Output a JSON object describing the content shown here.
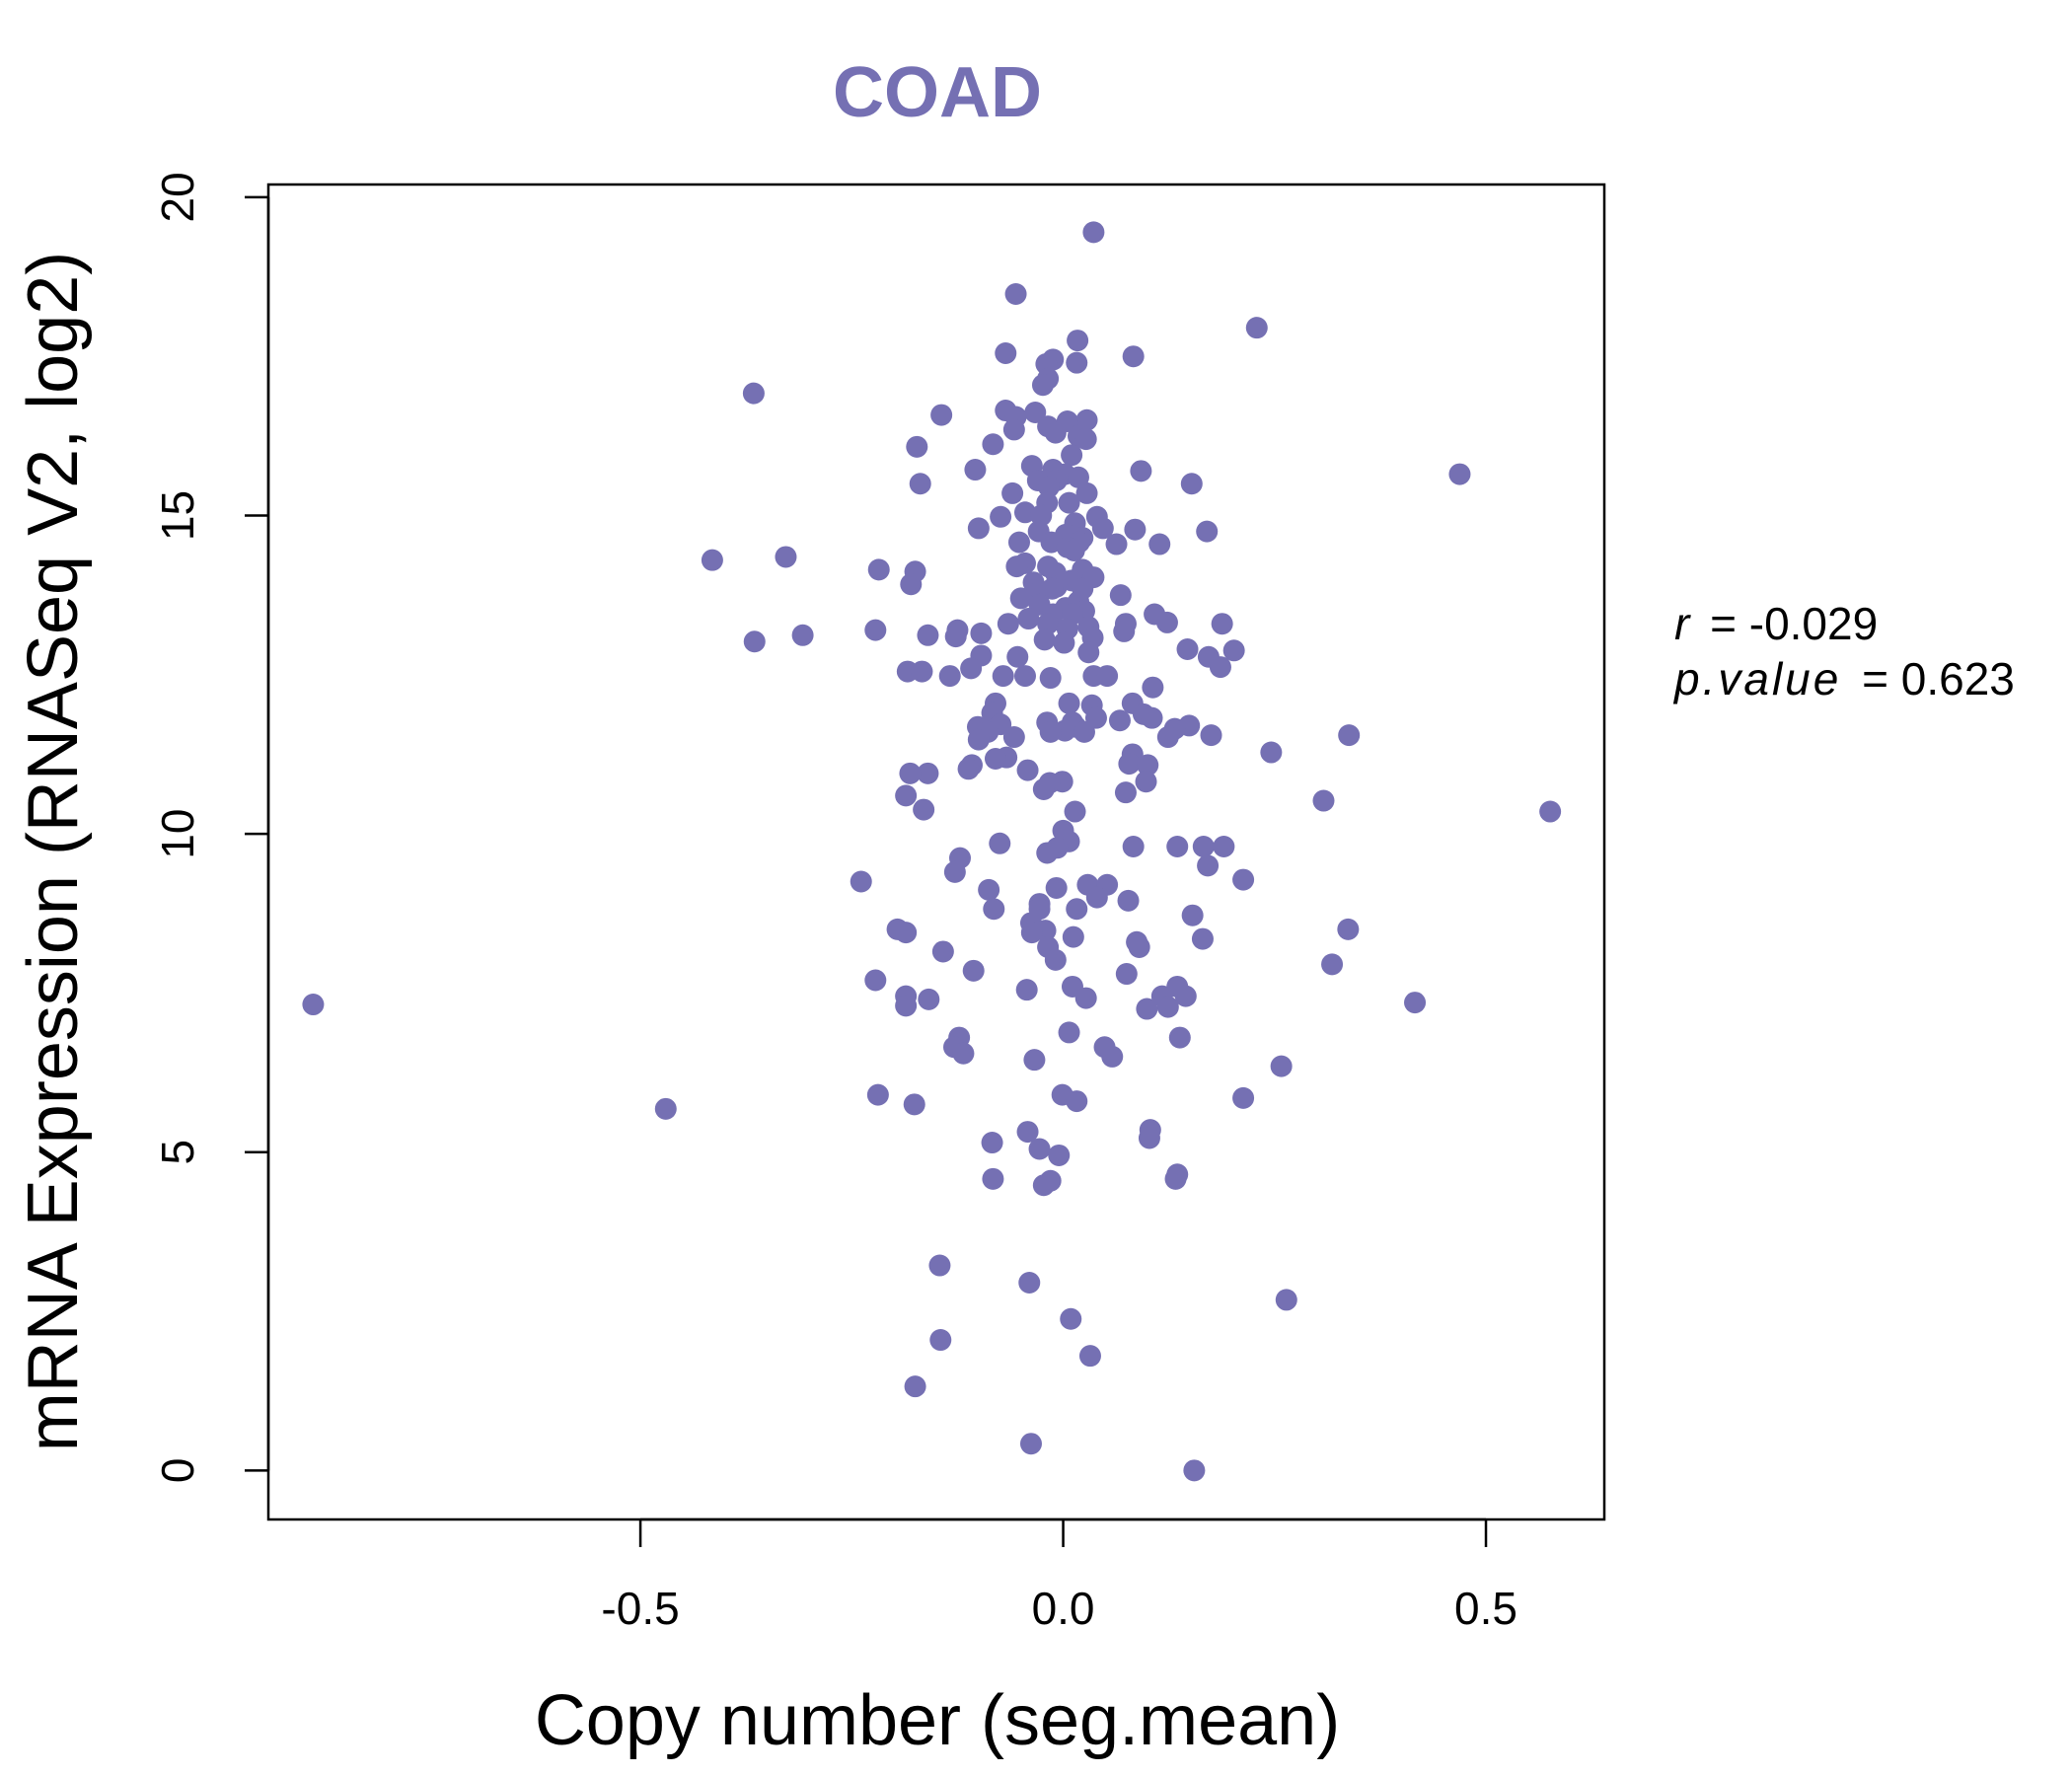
{
  "chart_data": {
    "type": "scatter",
    "title": "COAD",
    "xlabel": "Copy number (seg.mean)",
    "ylabel": "mRNA Expression (RNASeq V2, log2)",
    "xlim": [
      -0.94,
      0.64
    ],
    "ylim": [
      -0.77,
      20.2
    ],
    "xticks": [
      -0.5,
      0.0,
      0.5
    ],
    "xtick_labels": [
      "-0.5",
      "0.0",
      "0.5"
    ],
    "yticks": [
      0,
      5,
      10,
      15,
      20
    ],
    "ytick_labels": [
      "0",
      "5",
      "10",
      "15",
      "20"
    ],
    "grid": false,
    "legend": "none",
    "colors": {
      "points": "#7570b3",
      "title": "#7570b3",
      "axis": "#000000"
    },
    "annotation": {
      "r_label": "r",
      "r_value": "= -0.029",
      "p_label": "p.value",
      "p_value": "= 0.623"
    },
    "points": [
      [
        0.036,
        19.45
      ],
      [
        -0.056,
        18.48
      ],
      [
        0.229,
        17.95
      ],
      [
        0.017,
        17.75
      ],
      [
        -0.068,
        17.55
      ],
      [
        0.083,
        17.5
      ],
      [
        -0.012,
        17.45
      ],
      [
        0.016,
        17.4
      ],
      [
        -0.02,
        17.38
      ],
      [
        -0.018,
        17.15
      ],
      [
        -0.024,
        17.05
      ],
      [
        -0.366,
        16.92
      ],
      [
        -0.068,
        16.65
      ],
      [
        -0.144,
        16.58
      ],
      [
        -0.033,
        16.62
      ],
      [
        -0.056,
        16.55
      ],
      [
        0.028,
        16.5
      ],
      [
        0.005,
        16.48
      ],
      [
        -0.018,
        16.4
      ],
      [
        -0.058,
        16.35
      ],
      [
        -0.009,
        16.3
      ],
      [
        0.018,
        16.25
      ],
      [
        0.027,
        16.2
      ],
      [
        -0.083,
        16.12
      ],
      [
        -0.173,
        16.08
      ],
      [
        0.01,
        15.95
      ],
      [
        -0.037,
        15.78
      ],
      [
        -0.104,
        15.72
      ],
      [
        0.092,
        15.7
      ],
      [
        -0.012,
        15.72
      ],
      [
        0.002,
        15.65
      ],
      [
        0.018,
        15.6
      ],
      [
        0.469,
        15.65
      ],
      [
        -0.008,
        15.55
      ],
      [
        -0.03,
        15.55
      ],
      [
        -0.017,
        15.45
      ],
      [
        0.152,
        15.5
      ],
      [
        -0.169,
        15.5
      ],
      [
        0.028,
        15.35
      ],
      [
        -0.06,
        15.35
      ],
      [
        -0.019,
        15.2
      ],
      [
        0.007,
        15.2
      ],
      [
        -0.045,
        15.05
      ],
      [
        -0.026,
        15.0
      ],
      [
        0.04,
        14.98
      ],
      [
        -0.074,
        14.98
      ],
      [
        0.014,
        14.88
      ],
      [
        -0.1,
        14.8
      ],
      [
        0.047,
        14.8
      ],
      [
        0.085,
        14.78
      ],
      [
        0.17,
        14.75
      ],
      [
        -0.029,
        14.75
      ],
      [
        0.003,
        14.7
      ],
      [
        0.023,
        14.65
      ],
      [
        -0.052,
        14.58
      ],
      [
        0.063,
        14.55
      ],
      [
        -0.014,
        14.58
      ],
      [
        0.019,
        14.58
      ],
      [
        0.114,
        14.55
      ],
      [
        0.005,
        14.5
      ],
      [
        0.013,
        14.45
      ],
      [
        -0.415,
        14.3
      ],
      [
        -0.328,
        14.35
      ],
      [
        -0.045,
        14.25
      ],
      [
        -0.018,
        14.2
      ],
      [
        -0.055,
        14.2
      ],
      [
        -0.218,
        14.15
      ],
      [
        0.023,
        14.15
      ],
      [
        -0.175,
        14.12
      ],
      [
        -0.009,
        14.1
      ],
      [
        0.036,
        14.03
      ],
      [
        0.01,
        13.98
      ],
      [
        -0.035,
        13.95
      ],
      [
        -0.18,
        13.92
      ],
      [
        -0.008,
        13.88
      ],
      [
        -0.013,
        13.85
      ],
      [
        0.023,
        13.85
      ],
      [
        -0.03,
        13.78
      ],
      [
        0.068,
        13.75
      ],
      [
        -0.05,
        13.7
      ],
      [
        0.018,
        13.65
      ],
      [
        -0.028,
        13.6
      ],
      [
        0.003,
        13.55
      ],
      [
        0.025,
        13.5
      ],
      [
        -0.012,
        13.45
      ],
      [
        0.011,
        13.45
      ],
      [
        0.108,
        13.45
      ],
      [
        0.123,
        13.32
      ],
      [
        -0.041,
        13.38
      ],
      [
        -0.065,
        13.3
      ],
      [
        -0.018,
        13.3
      ],
      [
        0.074,
        13.3
      ],
      [
        0.188,
        13.3
      ],
      [
        0.03,
        13.25
      ],
      [
        0.005,
        13.22
      ],
      [
        -0.125,
        13.2
      ],
      [
        -0.097,
        13.15
      ],
      [
        -0.222,
        13.2
      ],
      [
        -0.308,
        13.12
      ],
      [
        -0.16,
        13.12
      ],
      [
        -0.127,
        13.1
      ],
      [
        0.072,
        13.18
      ],
      [
        0.035,
        13.08
      ],
      [
        -0.022,
        13.05
      ],
      [
        0.001,
        13.0
      ],
      [
        -0.365,
        13.02
      ],
      [
        0.147,
        12.9
      ],
      [
        0.202,
        12.88
      ],
      [
        0.03,
        12.85
      ],
      [
        0.172,
        12.78
      ],
      [
        -0.097,
        12.8
      ],
      [
        -0.054,
        12.78
      ],
      [
        -0.109,
        12.6
      ],
      [
        0.186,
        12.62
      ],
      [
        -0.184,
        12.55
      ],
      [
        -0.167,
        12.55
      ],
      [
        -0.071,
        12.48
      ],
      [
        -0.045,
        12.48
      ],
      [
        -0.134,
        12.48
      ],
      [
        -0.015,
        12.45
      ],
      [
        0.036,
        12.48
      ],
      [
        0.052,
        12.48
      ],
      [
        0.106,
        12.3
      ],
      [
        -0.08,
        12.05
      ],
      [
        0.082,
        12.05
      ],
      [
        0.007,
        12.05
      ],
      [
        0.034,
        12.02
      ],
      [
        -0.084,
        11.9
      ],
      [
        0.095,
        11.88
      ],
      [
        0.105,
        11.82
      ],
      [
        0.039,
        11.82
      ],
      [
        0.067,
        11.78
      ],
      [
        0.011,
        11.75
      ],
      [
        -0.019,
        11.75
      ],
      [
        -0.074,
        11.72
      ],
      [
        0.149,
        11.7
      ],
      [
        -0.101,
        11.68
      ],
      [
        0.015,
        11.68
      ],
      [
        0.132,
        11.65
      ],
      [
        0.002,
        11.62
      ],
      [
        -0.089,
        11.6
      ],
      [
        -0.015,
        11.6
      ],
      [
        0.025,
        11.6
      ],
      [
        0.175,
        11.55
      ],
      [
        0.338,
        11.55
      ],
      [
        -0.058,
        11.52
      ],
      [
        0.124,
        11.52
      ],
      [
        -0.1,
        11.48
      ],
      [
        0.246,
        11.28
      ],
      [
        0.082,
        11.25
      ],
      [
        -0.067,
        11.2
      ],
      [
        -0.08,
        11.18
      ],
      [
        0.078,
        11.1
      ],
      [
        0.1,
        11.08
      ],
      [
        -0.108,
        11.08
      ],
      [
        -0.112,
        11.02
      ],
      [
        -0.042,
        11.0
      ],
      [
        -0.16,
        10.95
      ],
      [
        -0.181,
        10.95
      ],
      [
        -0.001,
        10.82
      ],
      [
        -0.016,
        10.8
      ],
      [
        0.098,
        10.82
      ],
      [
        -0.023,
        10.7
      ],
      [
        0.074,
        10.65
      ],
      [
        -0.186,
        10.6
      ],
      [
        0.308,
        10.52
      ],
      [
        0.576,
        10.35
      ],
      [
        -0.165,
        10.38
      ],
      [
        0.014,
        10.35
      ],
      [
        0.0,
        10.05
      ],
      [
        0.007,
        9.88
      ],
      [
        -0.075,
        9.85
      ],
      [
        0.083,
        9.8
      ],
      [
        0.135,
        9.8
      ],
      [
        0.166,
        9.8
      ],
      [
        0.19,
        9.8
      ],
      [
        -0.007,
        9.78
      ],
      [
        -0.019,
        9.7
      ],
      [
        -0.122,
        9.62
      ],
      [
        0.171,
        9.5
      ],
      [
        -0.128,
        9.4
      ],
      [
        0.213,
        9.28
      ],
      [
        -0.239,
        9.25
      ],
      [
        0.029,
        9.2
      ],
      [
        0.052,
        9.2
      ],
      [
        -0.008,
        9.15
      ],
      [
        -0.088,
        9.12
      ],
      [
        0.04,
        9.0
      ],
      [
        0.077,
        8.95
      ],
      [
        -0.028,
        8.9
      ],
      [
        -0.028,
        8.82
      ],
      [
        0.016,
        8.82
      ],
      [
        -0.082,
        8.82
      ],
      [
        0.153,
        8.72
      ],
      [
        -0.038,
        8.6
      ],
      [
        0.337,
        8.5
      ],
      [
        -0.021,
        8.48
      ],
      [
        -0.196,
        8.5
      ],
      [
        -0.186,
        8.45
      ],
      [
        -0.037,
        8.45
      ],
      [
        0.012,
        8.38
      ],
      [
        0.165,
        8.35
      ],
      [
        0.087,
        8.3
      ],
      [
        0.09,
        8.22
      ],
      [
        -0.018,
        8.22
      ],
      [
        -0.009,
        8.02
      ],
      [
        -0.142,
        8.15
      ],
      [
        0.318,
        7.95
      ],
      [
        -0.106,
        7.85
      ],
      [
        0.075,
        7.8
      ],
      [
        -0.222,
        7.7
      ],
      [
        0.011,
        7.6
      ],
      [
        -0.043,
        7.55
      ],
      [
        0.135,
        7.6
      ],
      [
        0.117,
        7.45
      ],
      [
        0.027,
        7.42
      ],
      [
        -0.186,
        7.45
      ],
      [
        0.145,
        7.45
      ],
      [
        -0.159,
        7.4
      ],
      [
        0.416,
        7.35
      ],
      [
        -0.887,
        7.32
      ],
      [
        -0.186,
        7.3
      ],
      [
        0.124,
        7.28
      ],
      [
        0.099,
        7.25
      ],
      [
        0.007,
        6.88
      ],
      [
        0.138,
        6.8
      ],
      [
        -0.123,
        6.8
      ],
      [
        0.049,
        6.65
      ],
      [
        -0.129,
        6.65
      ],
      [
        -0.118,
        6.55
      ],
      [
        0.058,
        6.5
      ],
      [
        -0.034,
        6.45
      ],
      [
        0.258,
        6.35
      ],
      [
        -0.219,
        5.9
      ],
      [
        0.213,
        5.85
      ],
      [
        -0.001,
        5.9
      ],
      [
        0.016,
        5.8
      ],
      [
        -0.176,
        5.75
      ],
      [
        -0.47,
        5.68
      ],
      [
        0.103,
        5.35
      ],
      [
        -0.042,
        5.32
      ],
      [
        0.102,
        5.22
      ],
      [
        -0.084,
        5.15
      ],
      [
        -0.028,
        5.05
      ],
      [
        -0.005,
        4.95
      ],
      [
        0.135,
        4.65
      ],
      [
        -0.083,
        4.58
      ],
      [
        0.133,
        4.58
      ],
      [
        -0.015,
        4.55
      ],
      [
        -0.023,
        4.48
      ],
      [
        -0.146,
        3.22
      ],
      [
        -0.04,
        2.95
      ],
      [
        0.264,
        2.68
      ],
      [
        0.009,
        2.38
      ],
      [
        -0.145,
        2.05
      ],
      [
        0.032,
        1.8
      ],
      [
        -0.175,
        1.32
      ],
      [
        -0.038,
        0.42
      ],
      [
        0.155,
        0.0
      ]
    ]
  }
}
